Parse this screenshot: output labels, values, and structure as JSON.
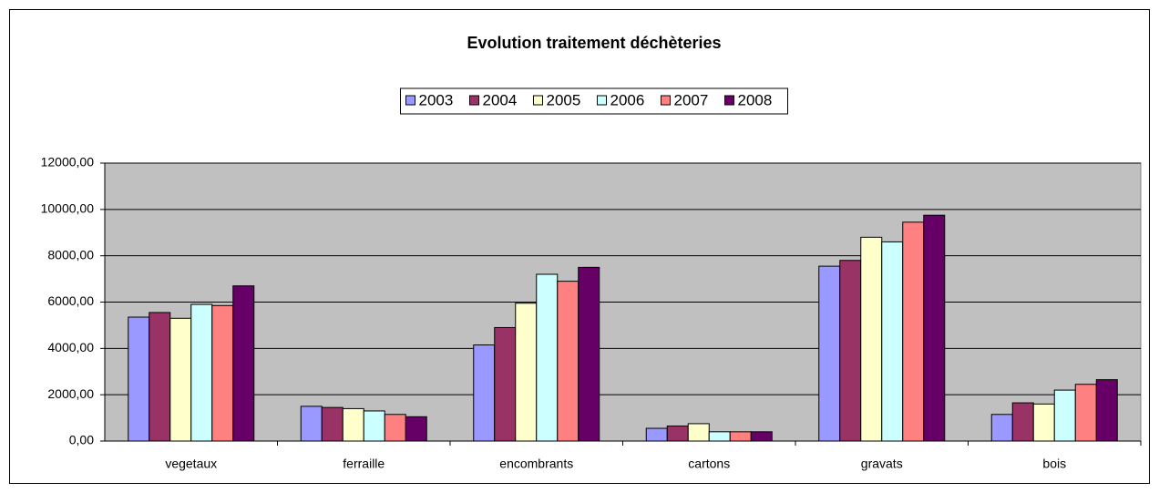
{
  "chart_data": {
    "type": "bar",
    "title": "Evolution traitement déchèteries",
    "categories": [
      "vegetaux",
      "ferraille",
      "encombrants",
      "cartons",
      "gravats",
      "bois"
    ],
    "series": [
      {
        "name": "2003",
        "color": "#9999ff",
        "values": [
          5350,
          1500,
          4150,
          550,
          7550,
          1150
        ]
      },
      {
        "name": "2004",
        "color": "#993366",
        "values": [
          5550,
          1450,
          4900,
          650,
          7800,
          1650
        ]
      },
      {
        "name": "2005",
        "color": "#ffffcc",
        "values": [
          5300,
          1400,
          5950,
          750,
          8800,
          1600
        ]
      },
      {
        "name": "2006",
        "color": "#ccffff",
        "values": [
          5900,
          1300,
          7200,
          400,
          8600,
          2200
        ]
      },
      {
        "name": "2007",
        "color": "#ff8080",
        "values": [
          5850,
          1150,
          6900,
          400,
          9450,
          2450
        ]
      },
      {
        "name": "2008",
        "color": "#660066",
        "values": [
          6700,
          1050,
          7500,
          400,
          9750,
          2650
        ]
      }
    ],
    "ylim": [
      0,
      12000
    ],
    "yticks": [
      {
        "value": 0,
        "label": "0,00"
      },
      {
        "value": 2000,
        "label": "2000,00"
      },
      {
        "value": 4000,
        "label": "4000,00"
      },
      {
        "value": 6000,
        "label": "6000,00"
      },
      {
        "value": 8000,
        "label": "8000,00"
      },
      {
        "value": 10000,
        "label": "10000,00"
      },
      {
        "value": 12000,
        "label": "12000,00"
      }
    ],
    "grid": true,
    "legend": "top"
  }
}
